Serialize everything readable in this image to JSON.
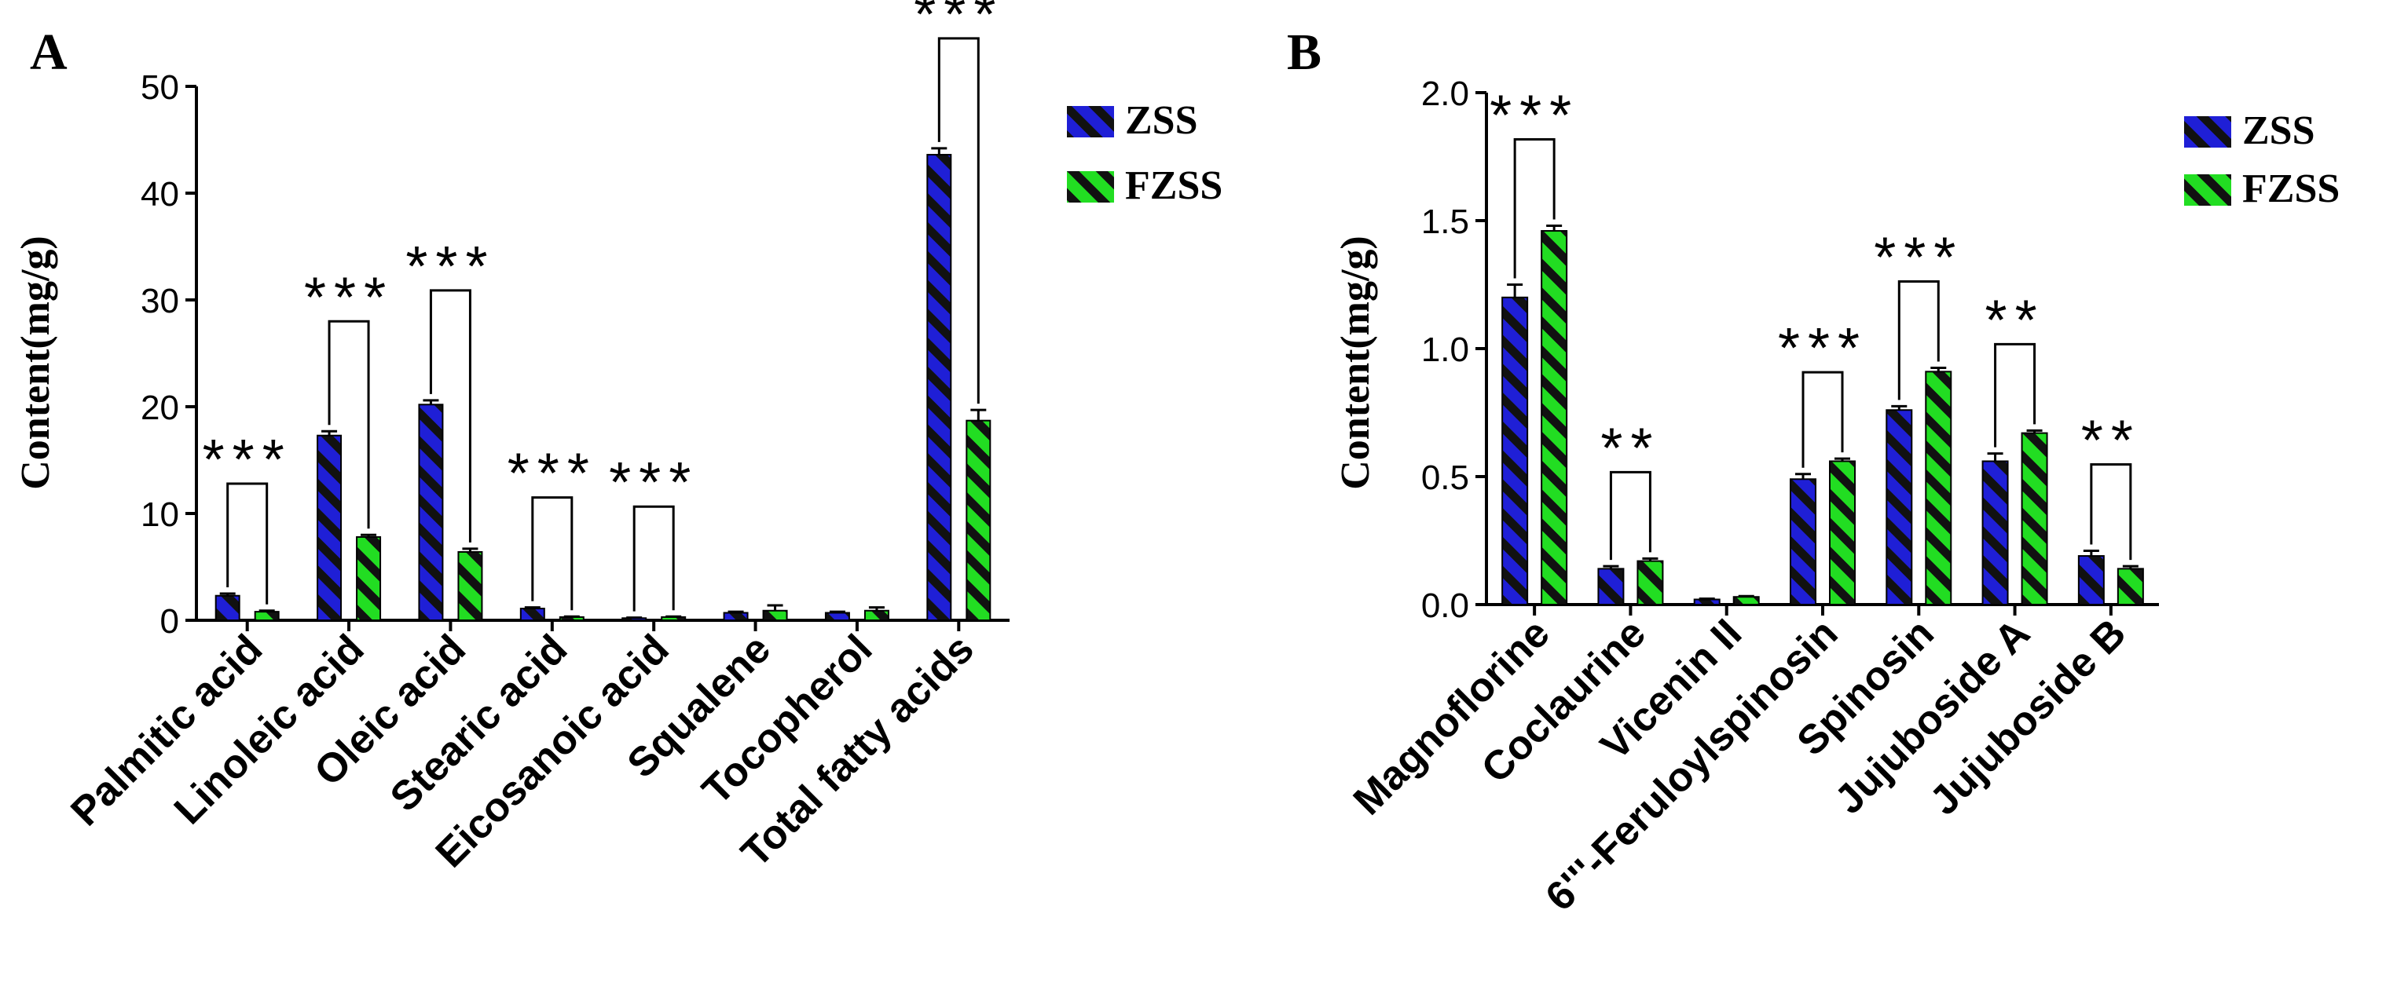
{
  "colors": {
    "zss_fill": "#1f1fd6",
    "fzss_fill": "#22dd22",
    "stripe": "#111111",
    "axis": "#000000"
  },
  "chart_data": [
    {
      "panel_label": "A",
      "type": "bar",
      "ylabel": "Content(mg/g)",
      "ylim": [
        0,
        50
      ],
      "yticks": [
        "0",
        "10",
        "20",
        "30",
        "40",
        "50"
      ],
      "categories": [
        "Palmitic acid",
        "Linoleic acid",
        "Oleic acid",
        "Stearic acid",
        "Eicosanoic acid",
        "Squalene",
        "Tocopherol",
        "Total  fatty acids"
      ],
      "series": [
        {
          "name": "ZSS",
          "values": [
            2.3,
            17.3,
            20.2,
            1.1,
            0.2,
            0.7,
            0.7,
            43.6
          ],
          "errors": [
            0.2,
            0.4,
            0.4,
            0.1,
            0.05,
            0.1,
            0.1,
            0.6
          ]
        },
        {
          "name": "FZSS",
          "values": [
            0.8,
            7.8,
            6.4,
            0.3,
            0.3,
            0.9,
            0.9,
            18.7
          ],
          "errors": [
            0.1,
            0.2,
            0.3,
            0.05,
            0.05,
            0.5,
            0.3,
            1.0
          ]
        }
      ],
      "significance": [
        "***",
        "***",
        "***",
        "***",
        "***",
        "",
        "",
        "***"
      ],
      "legend": [
        "ZSS",
        "FZSS"
      ],
      "legend_position": "top-right",
      "grid": false
    },
    {
      "panel_label": "B",
      "type": "bar",
      "ylabel": "Content(mg/g)",
      "ylim": [
        0,
        2.0
      ],
      "yticks": [
        "0.0",
        "0.5",
        "1.0",
        "1.5",
        "2.0"
      ],
      "categories": [
        "Magnoflorine",
        "Coclaurine",
        "Vicenin II",
        "6'''-Feruloylspinosin",
        "Spinosin",
        "Jujuboside A",
        "Jujuboside B"
      ],
      "series": [
        {
          "name": "ZSS",
          "values": [
            1.2,
            0.14,
            0.02,
            0.49,
            0.76,
            0.56,
            0.19
          ],
          "errors": [
            0.05,
            0.01,
            0.003,
            0.02,
            0.015,
            0.03,
            0.02
          ]
        },
        {
          "name": "FZSS",
          "values": [
            1.46,
            0.17,
            0.03,
            0.56,
            0.91,
            0.67,
            0.14
          ],
          "errors": [
            0.02,
            0.01,
            0.003,
            0.01,
            0.015,
            0.01,
            0.01
          ]
        }
      ],
      "significance": [
        "***",
        "**",
        "",
        "***",
        "***",
        "**",
        "**"
      ],
      "legend": [
        "ZSS",
        "FZSS"
      ],
      "legend_position": "top-right",
      "grid": false
    }
  ]
}
